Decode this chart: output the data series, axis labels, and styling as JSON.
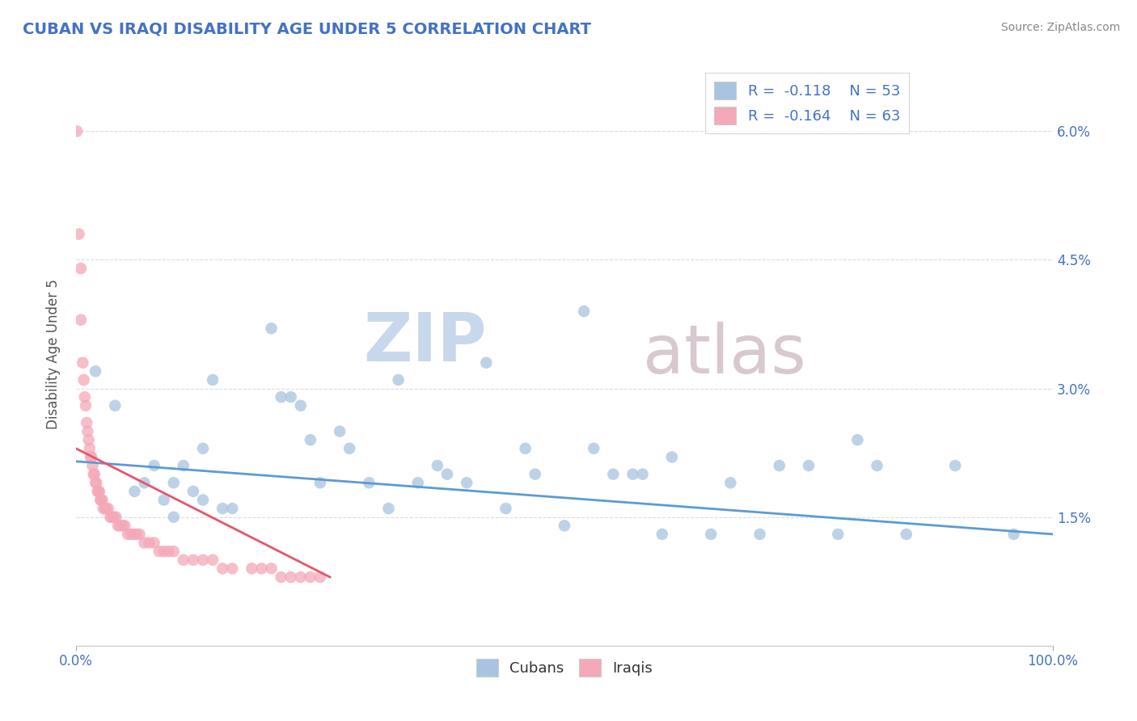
{
  "title": "CUBAN VS IRAQI DISABILITY AGE UNDER 5 CORRELATION CHART",
  "source": "Source: ZipAtlas.com",
  "ylabel": "Disability Age Under 5",
  "xlabel": "",
  "title_color": "#4472c4",
  "source_color": "#888888",
  "axis_label_color": "#555555",
  "background_color": "#ffffff",
  "plot_bg_color": "#ffffff",
  "grid_color": "#cccccc",
  "xlim": [
    0.0,
    1.0
  ],
  "ylim": [
    0.0,
    0.068
  ],
  "xtick_labels": [
    "0.0%",
    "100.0%"
  ],
  "ytick_labels": [
    "1.5%",
    "3.0%",
    "4.5%",
    "6.0%"
  ],
  "ytick_vals": [
    0.015,
    0.03,
    0.045,
    0.06
  ],
  "legend_r_cuban": "R =  -0.118",
  "legend_n_cuban": "N = 53",
  "legend_r_iraqi": "R =  -0.164",
  "legend_n_iraqi": "N = 63",
  "cuban_color": "#a8c4e0",
  "iraqi_color": "#f4a8b8",
  "cuban_line_color": "#5b9bd5",
  "iraqi_line_color": "#e8546a",
  "cuban_scatter": [
    [
      0.02,
      0.032
    ],
    [
      0.04,
      0.028
    ],
    [
      0.06,
      0.018
    ],
    [
      0.07,
      0.019
    ],
    [
      0.08,
      0.021
    ],
    [
      0.09,
      0.017
    ],
    [
      0.1,
      0.015
    ],
    [
      0.1,
      0.019
    ],
    [
      0.11,
      0.021
    ],
    [
      0.12,
      0.018
    ],
    [
      0.13,
      0.017
    ],
    [
      0.13,
      0.023
    ],
    [
      0.14,
      0.031
    ],
    [
      0.15,
      0.016
    ],
    [
      0.16,
      0.016
    ],
    [
      0.2,
      0.037
    ],
    [
      0.21,
      0.029
    ],
    [
      0.22,
      0.029
    ],
    [
      0.23,
      0.028
    ],
    [
      0.24,
      0.024
    ],
    [
      0.25,
      0.019
    ],
    [
      0.27,
      0.025
    ],
    [
      0.28,
      0.023
    ],
    [
      0.3,
      0.019
    ],
    [
      0.32,
      0.016
    ],
    [
      0.33,
      0.031
    ],
    [
      0.35,
      0.019
    ],
    [
      0.37,
      0.021
    ],
    [
      0.38,
      0.02
    ],
    [
      0.4,
      0.019
    ],
    [
      0.42,
      0.033
    ],
    [
      0.44,
      0.016
    ],
    [
      0.46,
      0.023
    ],
    [
      0.47,
      0.02
    ],
    [
      0.5,
      0.014
    ],
    [
      0.52,
      0.039
    ],
    [
      0.53,
      0.023
    ],
    [
      0.55,
      0.02
    ],
    [
      0.57,
      0.02
    ],
    [
      0.58,
      0.02
    ],
    [
      0.6,
      0.013
    ],
    [
      0.61,
      0.022
    ],
    [
      0.65,
      0.013
    ],
    [
      0.67,
      0.019
    ],
    [
      0.7,
      0.013
    ],
    [
      0.72,
      0.021
    ],
    [
      0.75,
      0.021
    ],
    [
      0.78,
      0.013
    ],
    [
      0.8,
      0.024
    ],
    [
      0.82,
      0.021
    ],
    [
      0.85,
      0.013
    ],
    [
      0.9,
      0.021
    ],
    [
      0.96,
      0.013
    ]
  ],
  "iraqi_scatter": [
    [
      0.001,
      0.06
    ],
    [
      0.003,
      0.048
    ],
    [
      0.005,
      0.044
    ],
    [
      0.005,
      0.038
    ],
    [
      0.007,
      0.033
    ],
    [
      0.008,
      0.031
    ],
    [
      0.009,
      0.029
    ],
    [
      0.01,
      0.028
    ],
    [
      0.011,
      0.026
    ],
    [
      0.012,
      0.025
    ],
    [
      0.013,
      0.024
    ],
    [
      0.014,
      0.023
    ],
    [
      0.015,
      0.022
    ],
    [
      0.016,
      0.022
    ],
    [
      0.017,
      0.021
    ],
    [
      0.018,
      0.02
    ],
    [
      0.019,
      0.02
    ],
    [
      0.02,
      0.019
    ],
    [
      0.021,
      0.019
    ],
    [
      0.022,
      0.018
    ],
    [
      0.023,
      0.018
    ],
    [
      0.024,
      0.018
    ],
    [
      0.025,
      0.017
    ],
    [
      0.026,
      0.017
    ],
    [
      0.027,
      0.017
    ],
    [
      0.028,
      0.016
    ],
    [
      0.03,
      0.016
    ],
    [
      0.031,
      0.016
    ],
    [
      0.033,
      0.016
    ],
    [
      0.035,
      0.015
    ],
    [
      0.037,
      0.015
    ],
    [
      0.039,
      0.015
    ],
    [
      0.041,
      0.015
    ],
    [
      0.043,
      0.014
    ],
    [
      0.045,
      0.014
    ],
    [
      0.048,
      0.014
    ],
    [
      0.05,
      0.014
    ],
    [
      0.053,
      0.013
    ],
    [
      0.056,
      0.013
    ],
    [
      0.059,
      0.013
    ],
    [
      0.062,
      0.013
    ],
    [
      0.065,
      0.013
    ],
    [
      0.07,
      0.012
    ],
    [
      0.075,
      0.012
    ],
    [
      0.08,
      0.012
    ],
    [
      0.085,
      0.011
    ],
    [
      0.09,
      0.011
    ],
    [
      0.095,
      0.011
    ],
    [
      0.1,
      0.011
    ],
    [
      0.11,
      0.01
    ],
    [
      0.12,
      0.01
    ],
    [
      0.13,
      0.01
    ],
    [
      0.14,
      0.01
    ],
    [
      0.15,
      0.009
    ],
    [
      0.16,
      0.009
    ],
    [
      0.18,
      0.009
    ],
    [
      0.19,
      0.009
    ],
    [
      0.2,
      0.009
    ],
    [
      0.21,
      0.008
    ],
    [
      0.22,
      0.008
    ],
    [
      0.23,
      0.008
    ],
    [
      0.24,
      0.008
    ],
    [
      0.25,
      0.008
    ]
  ],
  "cuban_trendline": [
    [
      0.0,
      0.0215
    ],
    [
      1.0,
      0.013
    ]
  ],
  "iraqi_trendline": [
    [
      0.0,
      0.023
    ],
    [
      0.26,
      0.008
    ]
  ],
  "watermark_zip": "ZIP",
  "watermark_atlas": "atlas",
  "watermark_color": "#c8d8ec",
  "watermark_color2": "#d8c8d0"
}
